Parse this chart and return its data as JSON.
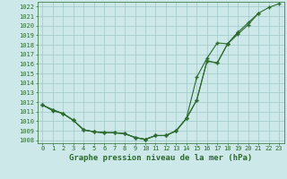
{
  "x": [
    0,
    1,
    2,
    3,
    4,
    5,
    6,
    7,
    8,
    9,
    10,
    11,
    12,
    13,
    14,
    15,
    16,
    17,
    18,
    19,
    20,
    21,
    22,
    23
  ],
  "line1": [
    1011.7,
    1011.1,
    1010.8,
    1010.1,
    1009.1,
    1008.9,
    1008.8,
    1008.8,
    1008.7,
    1008.3,
    1008.1,
    1008.5,
    1008.5,
    1009.0,
    1010.3,
    1012.2,
    1016.3,
    1016.1,
    1018.1,
    1019.1,
    1020.1,
    1021.3,
    1021.9,
    1022.3
  ],
  "line2": [
    1011.7,
    1011.2,
    1010.8,
    1010.1,
    1009.1,
    1008.9,
    1008.8,
    1008.8,
    1008.7,
    1008.3,
    1008.1,
    1008.5,
    1008.5,
    1009.0,
    1010.3,
    1012.2,
    1016.3,
    1016.1,
    1018.1,
    1019.3,
    1020.3,
    1021.3,
    null,
    null
  ],
  "line3": [
    1011.7,
    1011.2,
    1010.8,
    1010.1,
    1009.1,
    1008.9,
    1008.8,
    1008.8,
    1008.7,
    1008.3,
    1008.1,
    1008.5,
    1008.5,
    1009.0,
    1010.3,
    1014.6,
    1016.6,
    1018.2,
    1018.1,
    1019.3,
    null,
    null,
    null,
    null
  ],
  "ylim_min": 1007.7,
  "ylim_max": 1022.5,
  "xlim_min": -0.5,
  "xlim_max": 23.5,
  "yticks": [
    1008,
    1009,
    1010,
    1011,
    1012,
    1013,
    1014,
    1015,
    1016,
    1017,
    1018,
    1019,
    1020,
    1021,
    1022
  ],
  "xticks": [
    0,
    1,
    2,
    3,
    4,
    5,
    6,
    7,
    8,
    9,
    10,
    11,
    12,
    13,
    14,
    15,
    16,
    17,
    18,
    19,
    20,
    21,
    22,
    23
  ],
  "line_color": "#2d6a2d",
  "bg_color": "#cce8e8",
  "grid_color": "#9dc8c8",
  "xlabel": "Graphe pression niveau de la mer (hPa)",
  "marker": "+",
  "markersize": 3.5,
  "markeredgewidth": 1.0,
  "linewidth": 0.8,
  "tick_fontsize": 5.0,
  "xlabel_fontsize": 6.5
}
